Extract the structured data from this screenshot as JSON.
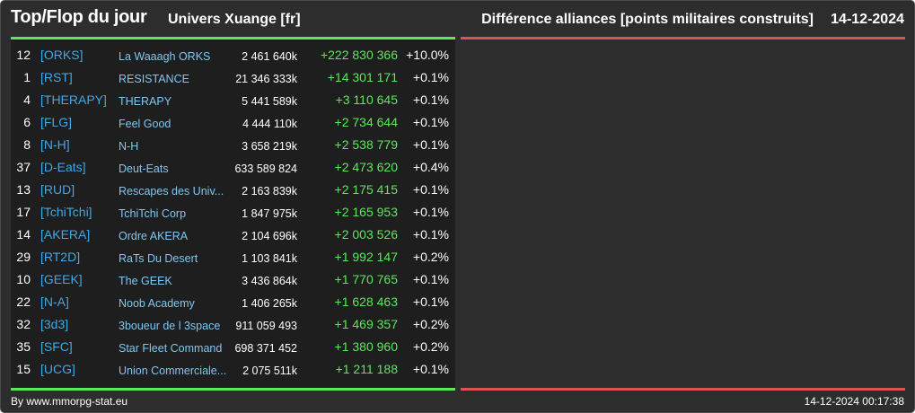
{
  "header": {
    "title": "Top/Flop du jour",
    "universe": "Univers Xuange [fr]",
    "subtitle": "Différence alliances [points militaires construits]",
    "date": "14-12-2024"
  },
  "colors": {
    "background": "#2d2d2d",
    "panel": "#1e1e1e",
    "top_accent": "#5ee65e",
    "flop_accent": "#e0524c",
    "tag": "#41a7e6",
    "name": "#7fc7f0",
    "positive": "#5ee65e"
  },
  "top_rows": [
    {
      "rank": "12",
      "tag": "[ORKS]",
      "name": "La Waaagh ORKS",
      "points": "2 461 640k",
      "diff": "+222 830 366",
      "pct": "+10.0%"
    },
    {
      "rank": "1",
      "tag": "[RST]",
      "name": "RESISTANCE",
      "points": "21 346 333k",
      "diff": "+14 301 171",
      "pct": "+0.1%"
    },
    {
      "rank": "4",
      "tag": "[THERAPY]",
      "name": "THERAPY",
      "points": "5 441 589k",
      "diff": "+3 110 645",
      "pct": "+0.1%"
    },
    {
      "rank": "6",
      "tag": "[FLG]",
      "name": "Feel Good",
      "points": "4 444 110k",
      "diff": "+2 734 644",
      "pct": "+0.1%"
    },
    {
      "rank": "8",
      "tag": "[N-H]",
      "name": "N-H",
      "points": "3 658 219k",
      "diff": "+2 538 779",
      "pct": "+0.1%"
    },
    {
      "rank": "37",
      "tag": "[D-Eats]",
      "name": "Deut-Eats",
      "points": "633 589 824",
      "diff": "+2 473 620",
      "pct": "+0.4%"
    },
    {
      "rank": "13",
      "tag": "[RUD]",
      "name": "Rescapes des Univ...",
      "points": "2 163 839k",
      "diff": "+2 175 415",
      "pct": "+0.1%"
    },
    {
      "rank": "17",
      "tag": "[TchiTchi]",
      "name": "TchiTchi Corp",
      "points": "1 847 975k",
      "diff": "+2 165 953",
      "pct": "+0.1%"
    },
    {
      "rank": "14",
      "tag": "[AKERA]",
      "name": "Ordre AKERA",
      "points": "2 104 696k",
      "diff": "+2 003 526",
      "pct": "+0.1%"
    },
    {
      "rank": "29",
      "tag": "[RT2D]",
      "name": "RaTs Du Desert",
      "points": "1 103 841k",
      "diff": "+1 992 147",
      "pct": "+0.2%"
    },
    {
      "rank": "10",
      "tag": "[GEEK]",
      "name": "The GEEK",
      "points": "3 436 864k",
      "diff": "+1 770 765",
      "pct": "+0.1%"
    },
    {
      "rank": "22",
      "tag": "[N-A]",
      "name": "Noob Academy",
      "points": "1 406 265k",
      "diff": "+1 628 463",
      "pct": "+0.1%"
    },
    {
      "rank": "32",
      "tag": "[3d3]",
      "name": "3boueur de l 3space",
      "points": "911 059 493",
      "diff": "+1 469 357",
      "pct": "+0.2%"
    },
    {
      "rank": "35",
      "tag": "[SFC]",
      "name": "Star Fleet Command",
      "points": "698 371 452",
      "diff": "+1 380 960",
      "pct": "+0.2%"
    },
    {
      "rank": "15",
      "tag": "[UCG]",
      "name": "Union Commerciale...",
      "points": "2 075 511k",
      "diff": "+1 211 188",
      "pct": "+0.1%"
    }
  ],
  "footer": {
    "source": "By www.mmorpg-stat.eu",
    "timestamp": "14-12-2024 00:17:38"
  }
}
